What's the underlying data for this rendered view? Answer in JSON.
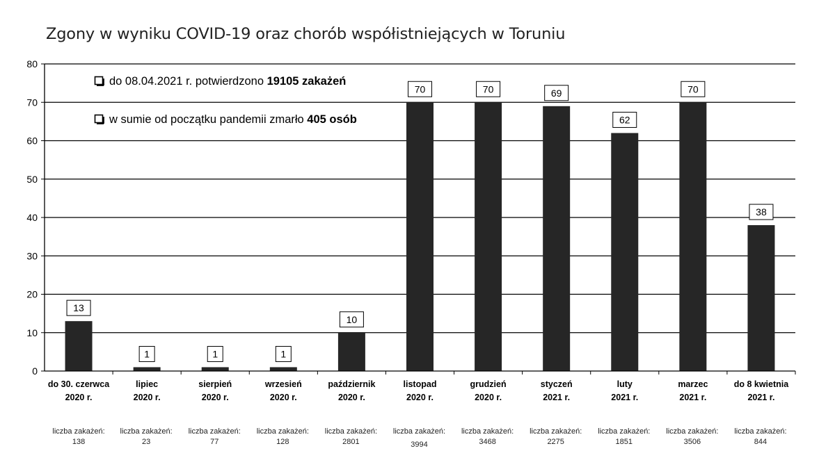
{
  "title": "Zgony w wyniku COVID-19 oraz chorób współistniejących w Toruniu",
  "chart_data": {
    "type": "bar",
    "title": "Zgony w wyniku COVID-19 oraz chorób współistniejących w Toruniu",
    "xlabel": "",
    "ylabel": "",
    "ylim": [
      0,
      80
    ],
    "yticks": [
      0,
      10,
      20,
      30,
      40,
      50,
      60,
      70,
      80
    ],
    "grid": true,
    "bar_color": "#262626",
    "categories": [
      {
        "line1": "do 30. czerwca",
        "line2": "2020 r."
      },
      {
        "line1": "lipiec",
        "line2": "2020 r."
      },
      {
        "line1": "sierpień",
        "line2": "2020 r."
      },
      {
        "line1": "wrzesień",
        "line2": "2020 r."
      },
      {
        "line1": "październik",
        "line2": "2020 r."
      },
      {
        "line1": "listopad",
        "line2": "2020 r."
      },
      {
        "line1": "grudzień",
        "line2": "2020 r."
      },
      {
        "line1": "styczeń",
        "line2": "2021 r."
      },
      {
        "line1": "luty",
        "line2": "2021 r."
      },
      {
        "line1": "marzec",
        "line2": "2021 r."
      },
      {
        "line1": "do 8 kwietnia",
        "line2": "2021 r."
      }
    ],
    "values": [
      13,
      1,
      1,
      1,
      10,
      70,
      70,
      69,
      62,
      70,
      38
    ],
    "infections_label": "liczba zakażeń:",
    "infections": [
      "138",
      "23",
      "77",
      "128",
      "2801",
      "3994",
      "3468",
      "2275",
      "1851",
      "3506",
      "844"
    ],
    "annotations": [
      {
        "prefix": "do 08.04.2021 r. potwierdzono ",
        "bold": "19105 zakażeń"
      },
      {
        "prefix": "w sumie od początku pandemii zmarło ",
        "bold": "405 osób"
      }
    ]
  }
}
